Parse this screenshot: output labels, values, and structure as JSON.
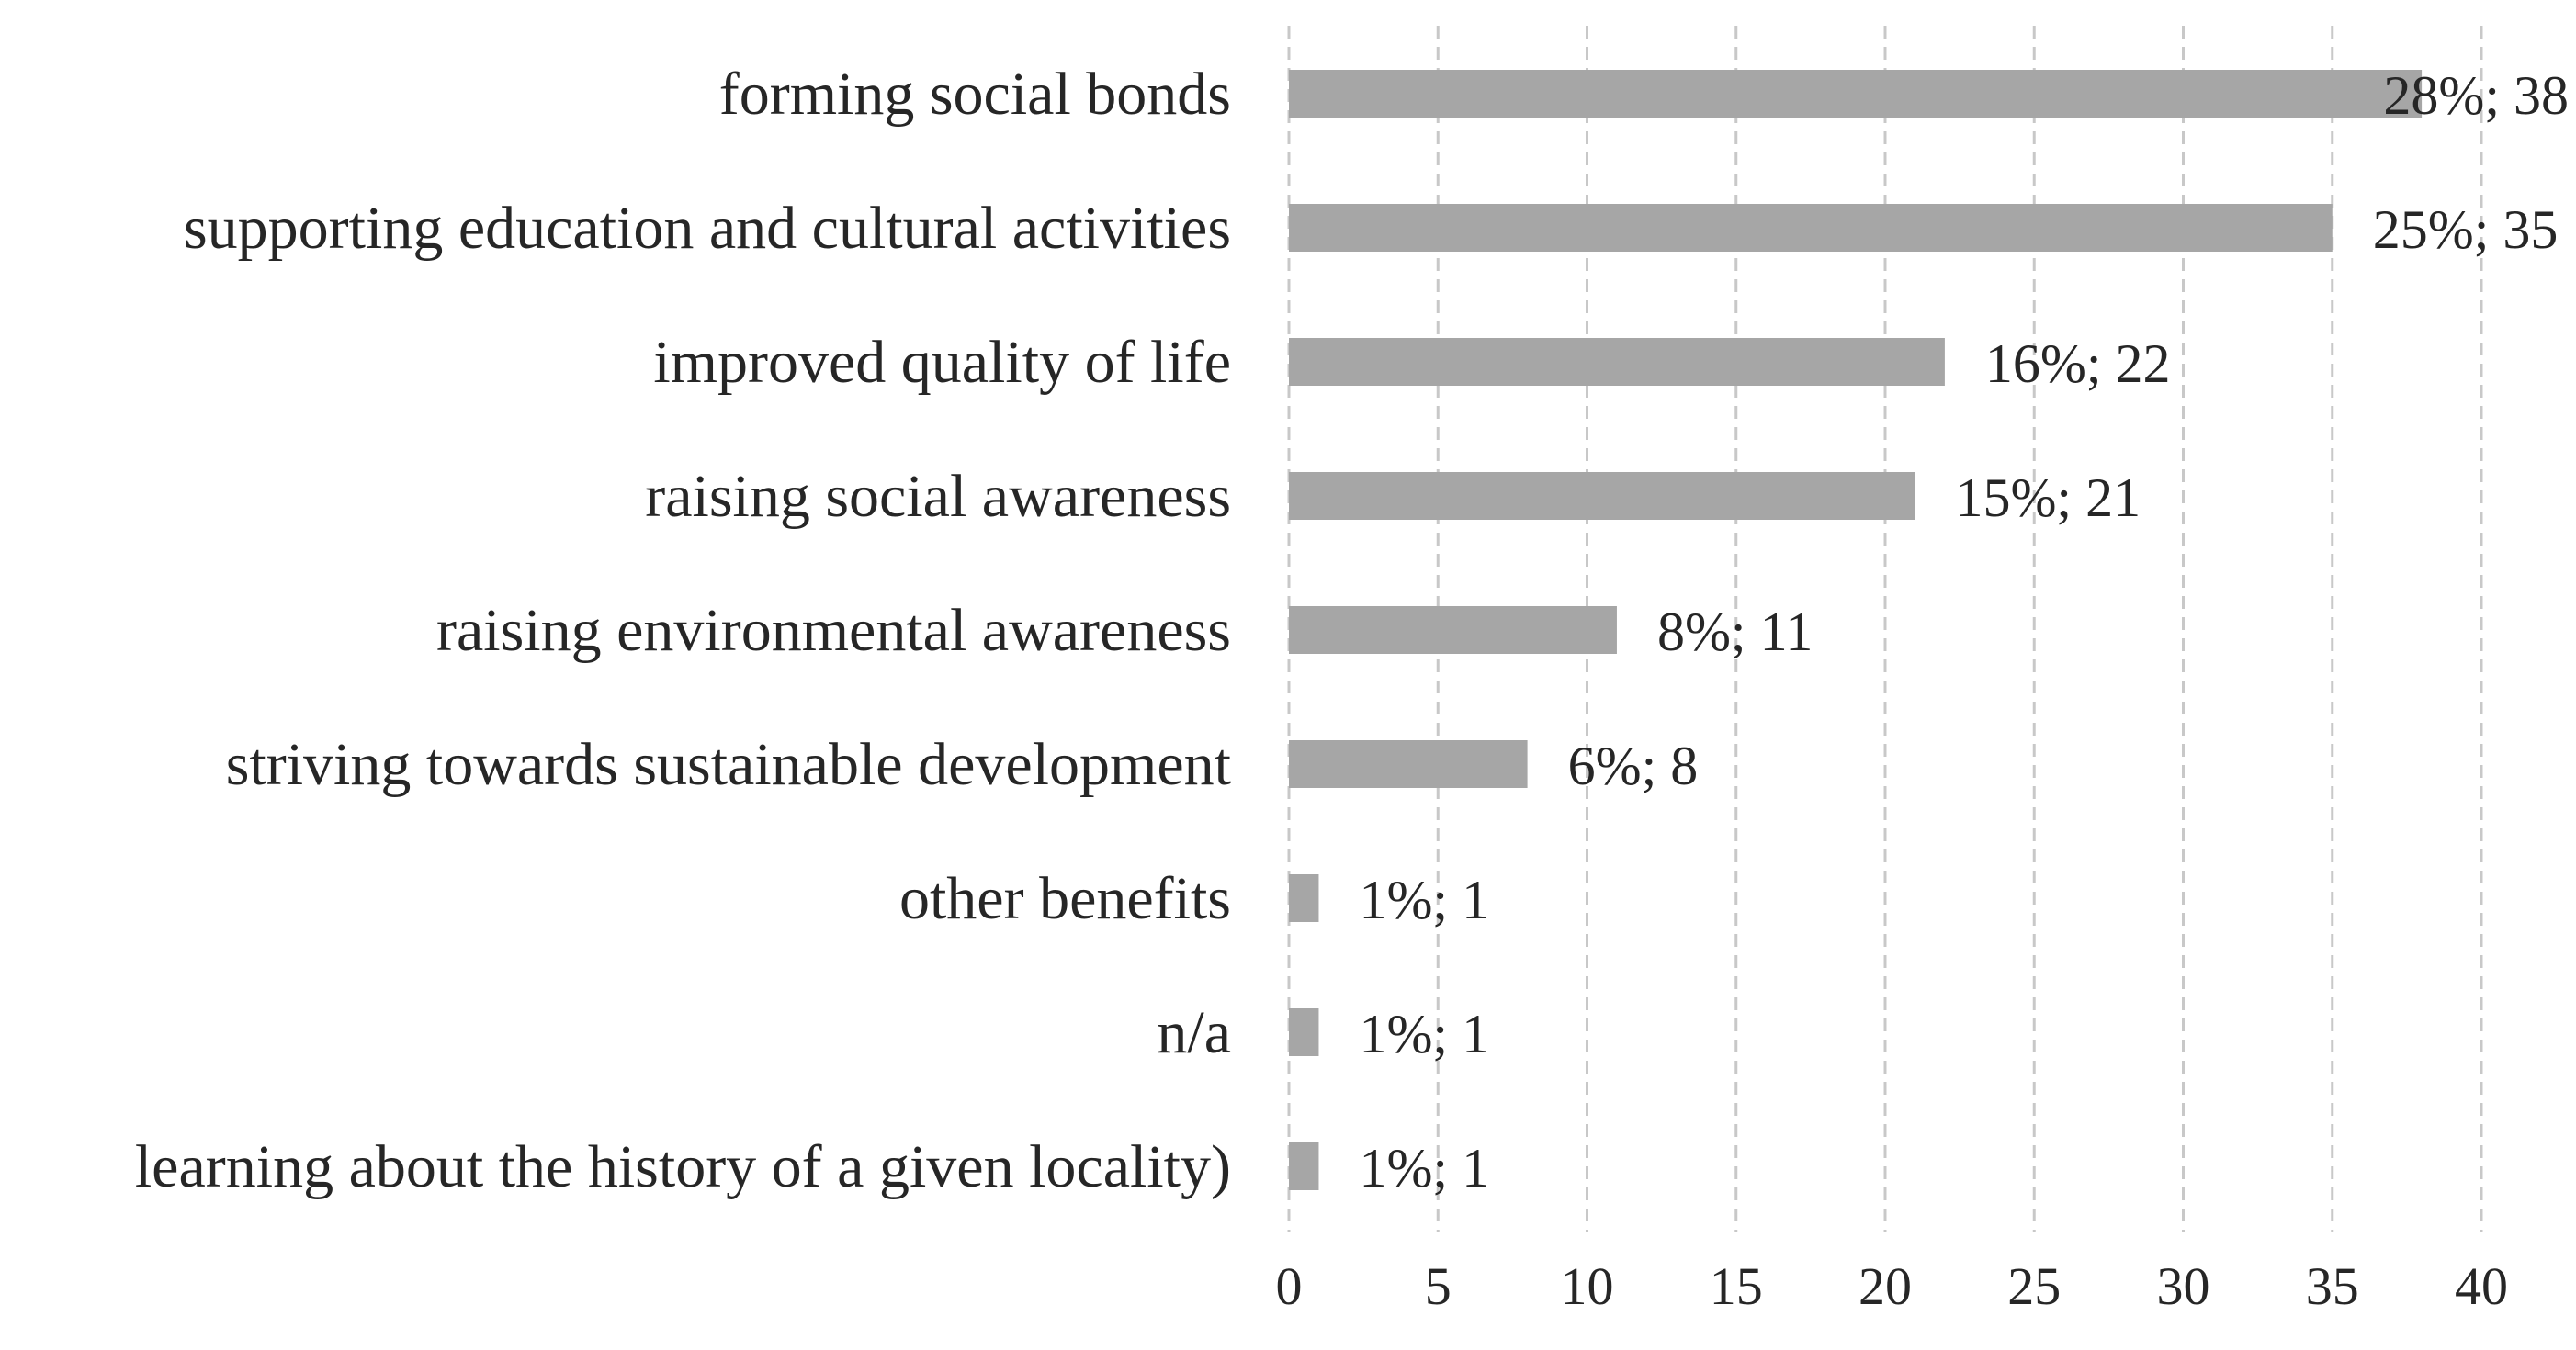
{
  "chart_data": {
    "type": "bar",
    "orientation": "horizontal",
    "title": "",
    "xlabel": "",
    "ylabel": "",
    "categories": [
      "forming social bonds",
      "supporting education and cultural activities",
      "improved quality of life",
      "raising social awareness",
      "raising environmental awareness",
      "striving towards sustainable development",
      "other benefits",
      "n/a",
      "learning about the history of a given locality)"
    ],
    "values": [
      38,
      35,
      22,
      21,
      11,
      8,
      1,
      1,
      1
    ],
    "data_labels": [
      "28%; 38",
      "25%; 35",
      "16%; 22",
      "15%; 21",
      "8%; 11",
      "6%; 8",
      "1%; 1",
      "1%; 1",
      "1%; 1"
    ],
    "xlim": [
      0,
      40
    ],
    "xticks": [
      0,
      5,
      10,
      15,
      20,
      25,
      30,
      35,
      40
    ],
    "grid": "vertical dashed",
    "legend": "none",
    "bar_color": "#a6a6a6",
    "grid_color": "#c8c8c8"
  }
}
